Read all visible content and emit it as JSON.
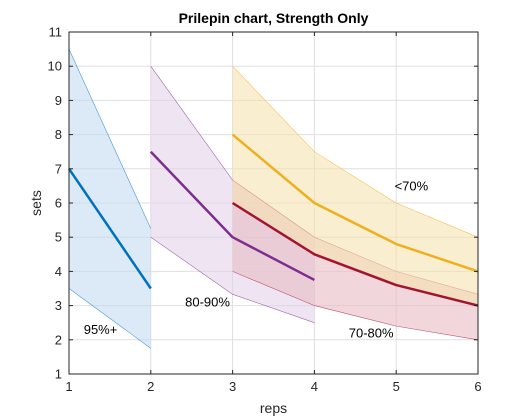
{
  "chart_data": {
    "type": "area",
    "title": "Prilepin chart, Strength Only",
    "xlabel": "reps",
    "ylabel": "sets",
    "xlim": [
      1,
      6
    ],
    "ylim": [
      1,
      11
    ],
    "xticks": [
      1,
      2,
      3,
      4,
      5,
      6
    ],
    "yticks": [
      1,
      2,
      3,
      4,
      5,
      6,
      7,
      8,
      9,
      10,
      11
    ],
    "grid": true,
    "box": true,
    "series": [
      {
        "color": "#0072BD",
        "fill": "#c5dcf1",
        "x": [
          1,
          2
        ],
        "line": [
          7,
          3.5
        ],
        "upper": [
          10.5,
          5.25
        ],
        "lower": [
          3.5,
          1.75
        ]
      },
      {
        "color": "#7E2F8E",
        "fill": "#e3d2ea",
        "x": [
          2,
          3,
          4
        ],
        "line": [
          7.5,
          5,
          3.75
        ],
        "upper": [
          10,
          6.67,
          5
        ],
        "lower": [
          5,
          3.33,
          2.5
        ]
      },
      {
        "color": "#A2142F",
        "fill": "#e8bcc5",
        "x": [
          3,
          4,
          5,
          6
        ],
        "line": [
          6,
          4.5,
          3.6,
          3
        ],
        "upper": [
          6.67,
          5,
          4,
          3.33
        ],
        "lower": [
          4,
          3,
          2.4,
          2
        ]
      },
      {
        "color": "#EDB120",
        "fill": "#f7e2b0",
        "x": [
          3,
          4,
          5,
          6
        ],
        "line": [
          8,
          6,
          4.8,
          4
        ],
        "upper": [
          10,
          7.5,
          6,
          5
        ],
        "lower": [
          6,
          4.5,
          3.6,
          3
        ]
      }
    ],
    "annotations": [
      {
        "text": "95%+",
        "x": 1.18,
        "y": 2.3
      },
      {
        "text": "80-90%",
        "x": 2.42,
        "y": 3.1
      },
      {
        "text": "70-80%",
        "x": 4.42,
        "y": 2.2
      },
      {
        "text": "<70%",
        "x": 4.98,
        "y": 6.5
      }
    ]
  }
}
